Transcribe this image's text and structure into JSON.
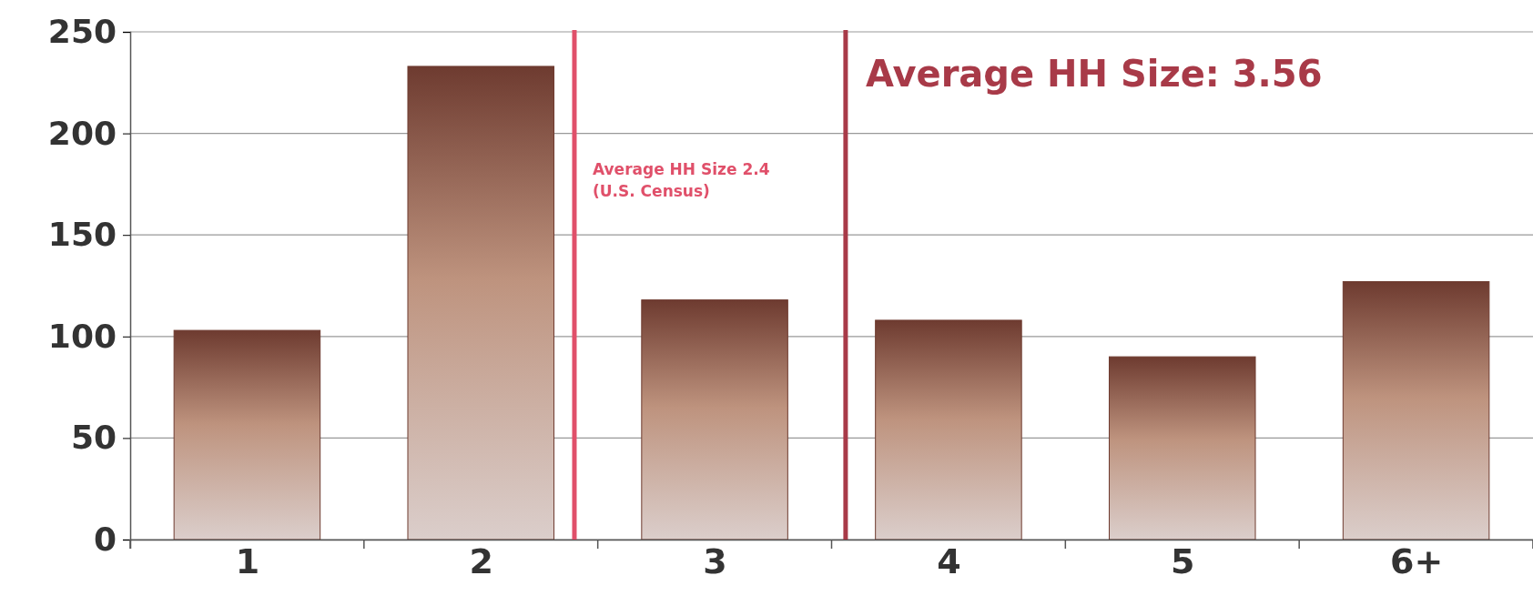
{
  "chart_data": {
    "type": "bar",
    "x": [
      1,
      2,
      3,
      4,
      5,
      6
    ],
    "values": [
      103,
      233,
      118,
      108,
      90,
      127
    ],
    "color": "#6e3b30",
    "xlim": [
      0.5,
      6.5
    ],
    "xticks": [
      1,
      2,
      3,
      4,
      5,
      {
        "value": 6,
        "label": "6+"
      }
    ],
    "ylim": [
      0,
      250
    ],
    "yticks": [
      0,
      50,
      100,
      150,
      200,
      250
    ],
    "grid": "y",
    "ref_lines": [
      {
        "axis": "x",
        "value": 2.4,
        "label": "Average HH Size 2.4\n(U.S. Census)",
        "color": "#e0506a"
      },
      {
        "axis": "x",
        "value": 3.56,
        "label": "Average HH Size: 3.56",
        "color": "#a83a48"
      }
    ]
  }
}
